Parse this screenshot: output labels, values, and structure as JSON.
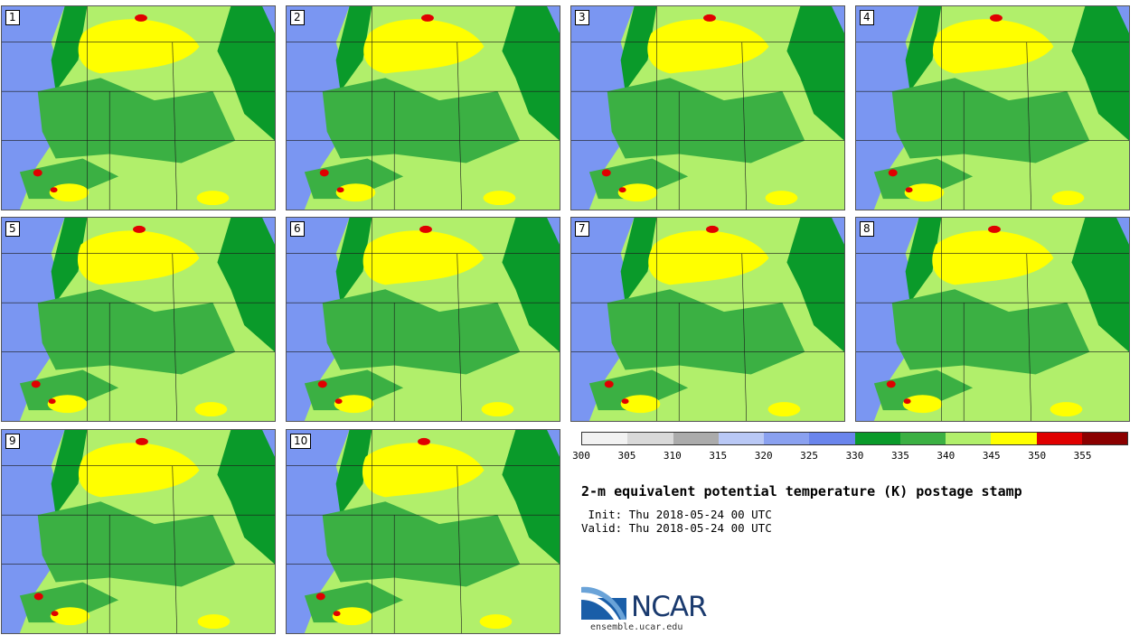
{
  "panels": [
    {
      "label": "1"
    },
    {
      "label": "2"
    },
    {
      "label": "3"
    },
    {
      "label": "4"
    },
    {
      "label": "5"
    },
    {
      "label": "6"
    },
    {
      "label": "7"
    },
    {
      "label": "8"
    },
    {
      "label": "9"
    },
    {
      "label": "10"
    }
  ],
  "colorbar": {
    "colors": [
      "#f2f2f2",
      "#d9d9d9",
      "#ababab",
      "#b9c8f5",
      "#8aa1f0",
      "#6a85ec",
      "#0a9a2a",
      "#3bb043",
      "#b1ef6b",
      "#ffff00",
      "#e00000",
      "#8b0000"
    ],
    "ticks": [
      "300",
      "305",
      "310",
      "315",
      "320",
      "325",
      "330",
      "335",
      "340",
      "345",
      "350",
      "355"
    ]
  },
  "title": "2-m equivalent potential temperature (K) postage stamp",
  "init": " Init: Thu 2018-05-24 00 UTC",
  "valid": "Valid: Thu 2018-05-24 00 UTC",
  "logo": {
    "name": "NCAR",
    "url": "ensemble.ucar.edu"
  },
  "legend": {
    "blue": "#7a96f2",
    "dark_green": "#0a9a2a",
    "green": "#3bb043",
    "light_green": "#b1ef6b",
    "yellow": "#ffff00",
    "red": "#e00000"
  }
}
